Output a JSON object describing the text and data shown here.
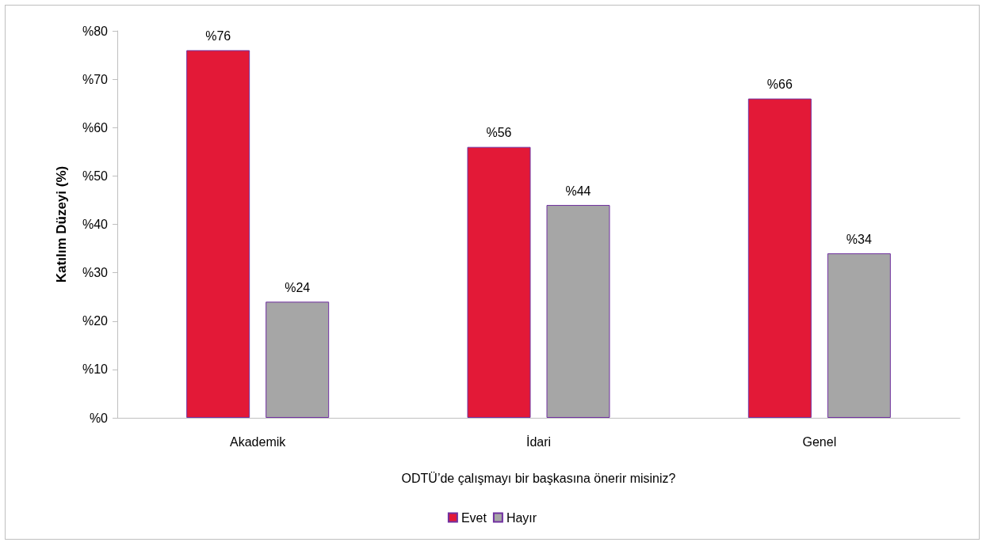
{
  "chart_data": {
    "type": "bar",
    "xlabel": "ODTÜ’de çalışmayı bir başkasına önerir misiniz?",
    "ylabel": "Katılım Düzeyi (%)",
    "categories": [
      "Akademik",
      "İdari",
      "Genel"
    ],
    "series": [
      {
        "name": "Evet",
        "color": "#e31937",
        "values": [
          76,
          56,
          66
        ],
        "value_labels": [
          "%76",
          "%56",
          "%66"
        ]
      },
      {
        "name": "Hayır",
        "color": "#a6a6a6",
        "values": [
          24,
          44,
          34
        ],
        "value_labels": [
          "%24",
          "%44",
          "%34"
        ]
      }
    ],
    "ylim": [
      0,
      80
    ],
    "yticks": [
      {
        "value": 0,
        "label": "%0"
      },
      {
        "value": 10,
        "label": "%10"
      },
      {
        "value": 20,
        "label": "%20"
      },
      {
        "value": 30,
        "label": "%30"
      },
      {
        "value": 40,
        "label": "%40"
      },
      {
        "value": 50,
        "label": "%50"
      },
      {
        "value": 60,
        "label": "%60"
      },
      {
        "value": 70,
        "label": "%70"
      },
      {
        "value": 80,
        "label": "%80"
      }
    ],
    "grid": false,
    "legend": "bottom"
  }
}
